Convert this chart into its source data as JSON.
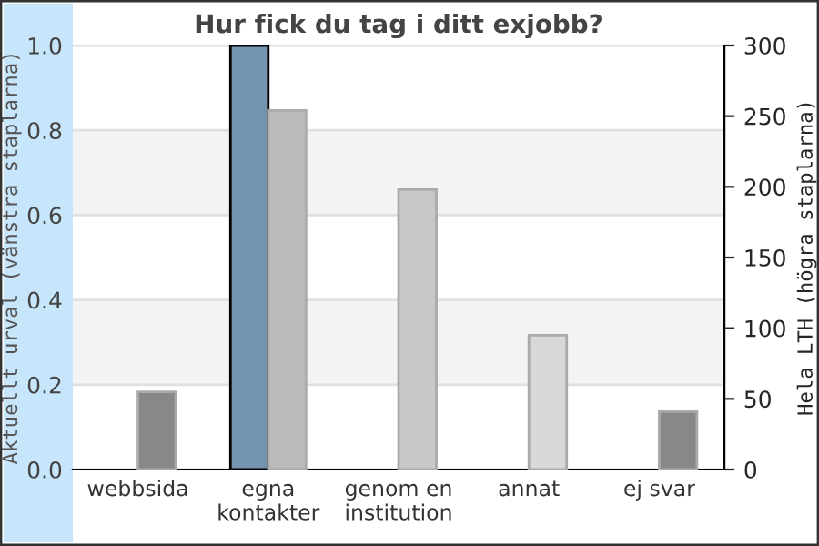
{
  "chart_data": {
    "type": "bar",
    "title": "Hur fick du tag i ditt exjobb?",
    "categories": [
      "webbsida",
      "egna\nkontakter",
      "genom en\ninstitution",
      "annat",
      "ej svar"
    ],
    "ylabel": "Aktuellt urval (vänstra staplarna)",
    "y2label": "Hela LTH (högra staplarna)",
    "series": [
      {
        "color": "#7393b0",
        "values": [
          null,
          1.0,
          null,
          null,
          null
        ]
      },
      {
        "colors": [
          "#888888",
          "#bbbbbb",
          "#c8c8c8",
          "#d8d8d8",
          "#888888"
        ],
        "axis": "y2",
        "values": [
          55,
          254,
          198,
          95,
          41
        ]
      }
    ],
    "ylim": [
      0,
      1.0
    ],
    "yticks": [
      {
        "value": 0,
        "label": "0.0"
      },
      {
        "value": 0.2,
        "label": "0.2"
      },
      {
        "value": 0.4,
        "label": "0.4"
      },
      {
        "value": 0.6,
        "label": "0.6"
      },
      {
        "value": 0.8,
        "label": "0.8"
      },
      {
        "value": 1.0,
        "label": "1.0"
      }
    ],
    "y2lim": [
      0,
      300
    ],
    "y2ticks": [
      0,
      50,
      100,
      150,
      200,
      250,
      300
    ],
    "grid": "y",
    "bands": [
      {
        "axis": "y",
        "from": 0.2,
        "to": 0.4,
        "color": "#f3f3f3"
      },
      {
        "axis": "y",
        "from": 0.6,
        "to": 0.8,
        "color": "#f3f3f3"
      }
    ]
  }
}
